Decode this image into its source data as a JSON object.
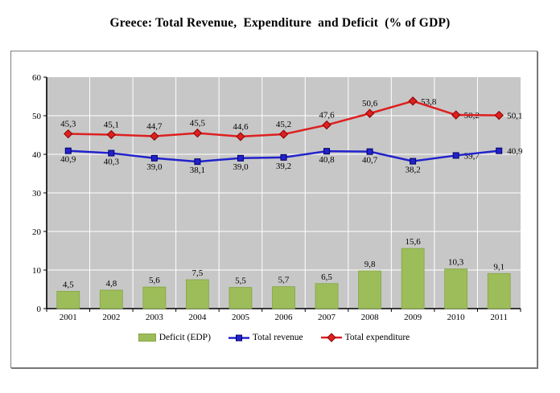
{
  "title": "Greece: Total Revenue,  Expenditure  and Deficit  (% of GDP)",
  "chart_data": {
    "type": "bar",
    "subtype": "combo-bar-lines",
    "categories": [
      "2001",
      "2002",
      "2003",
      "2004",
      "2005",
      "2006",
      "2007",
      "2008",
      "2009",
      "2010",
      "2011"
    ],
    "bar_series": {
      "name": "Deficit (EDP)",
      "color": "#9CBD59",
      "border_color": "#86A546",
      "values": [
        4.5,
        4.8,
        5.6,
        7.5,
        5.5,
        5.7,
        6.5,
        9.8,
        15.6,
        10.3,
        9.1
      ],
      "labels": [
        "4,5",
        "4,8",
        "5,6",
        "7,5",
        "5,5",
        "5,7",
        "6,5",
        "9,8",
        "15,6",
        "10,3",
        "9,1"
      ]
    },
    "line_series": [
      {
        "name": "Total revenue",
        "color": "#2222CC",
        "marker": "square",
        "marker_stroke": "#000066",
        "values": [
          40.9,
          40.3,
          39.0,
          38.1,
          39.0,
          39.2,
          40.8,
          40.7,
          38.2,
          39.7,
          40.9
        ],
        "labels": [
          "40,9",
          "40,3",
          "39,0",
          "38,1",
          "39,0",
          "39,2",
          "40,8",
          "40,7",
          "38,2",
          "39,7",
          "40,9"
        ],
        "label_placement": [
          "below",
          "below",
          "below",
          "below",
          "below",
          "below",
          "below",
          "below",
          "below",
          "right",
          "right"
        ]
      },
      {
        "name": "Total expenditure",
        "color": "#DD2020",
        "marker": "diamond",
        "marker_stroke": "#8B0000",
        "values": [
          45.3,
          45.1,
          44.7,
          45.5,
          44.6,
          45.2,
          47.6,
          50.6,
          53.8,
          50.2,
          50.1
        ],
        "labels": [
          "45,3",
          "45,1",
          "44,7",
          "45,5",
          "44,6",
          "45,2",
          "47,6",
          "50,6",
          "53,8",
          "50,2",
          "50,1"
        ],
        "label_placement": [
          "above",
          "above",
          "above",
          "above",
          "above",
          "above",
          "above",
          "above",
          "right",
          "right",
          "right"
        ]
      }
    ],
    "xlabel": "",
    "ylabel": "",
    "ylim": [
      0,
      60
    ],
    "yticks": [
      0,
      10,
      20,
      30,
      40,
      50,
      60
    ],
    "ytick_labels": [
      "0",
      "10",
      "20",
      "30",
      "40",
      "50",
      "60"
    ],
    "grid": true,
    "grid_color": "#FFFFFF",
    "plot_bg": "#C7C7C7",
    "axis_color": "#000000",
    "legend_position": "bottom"
  }
}
